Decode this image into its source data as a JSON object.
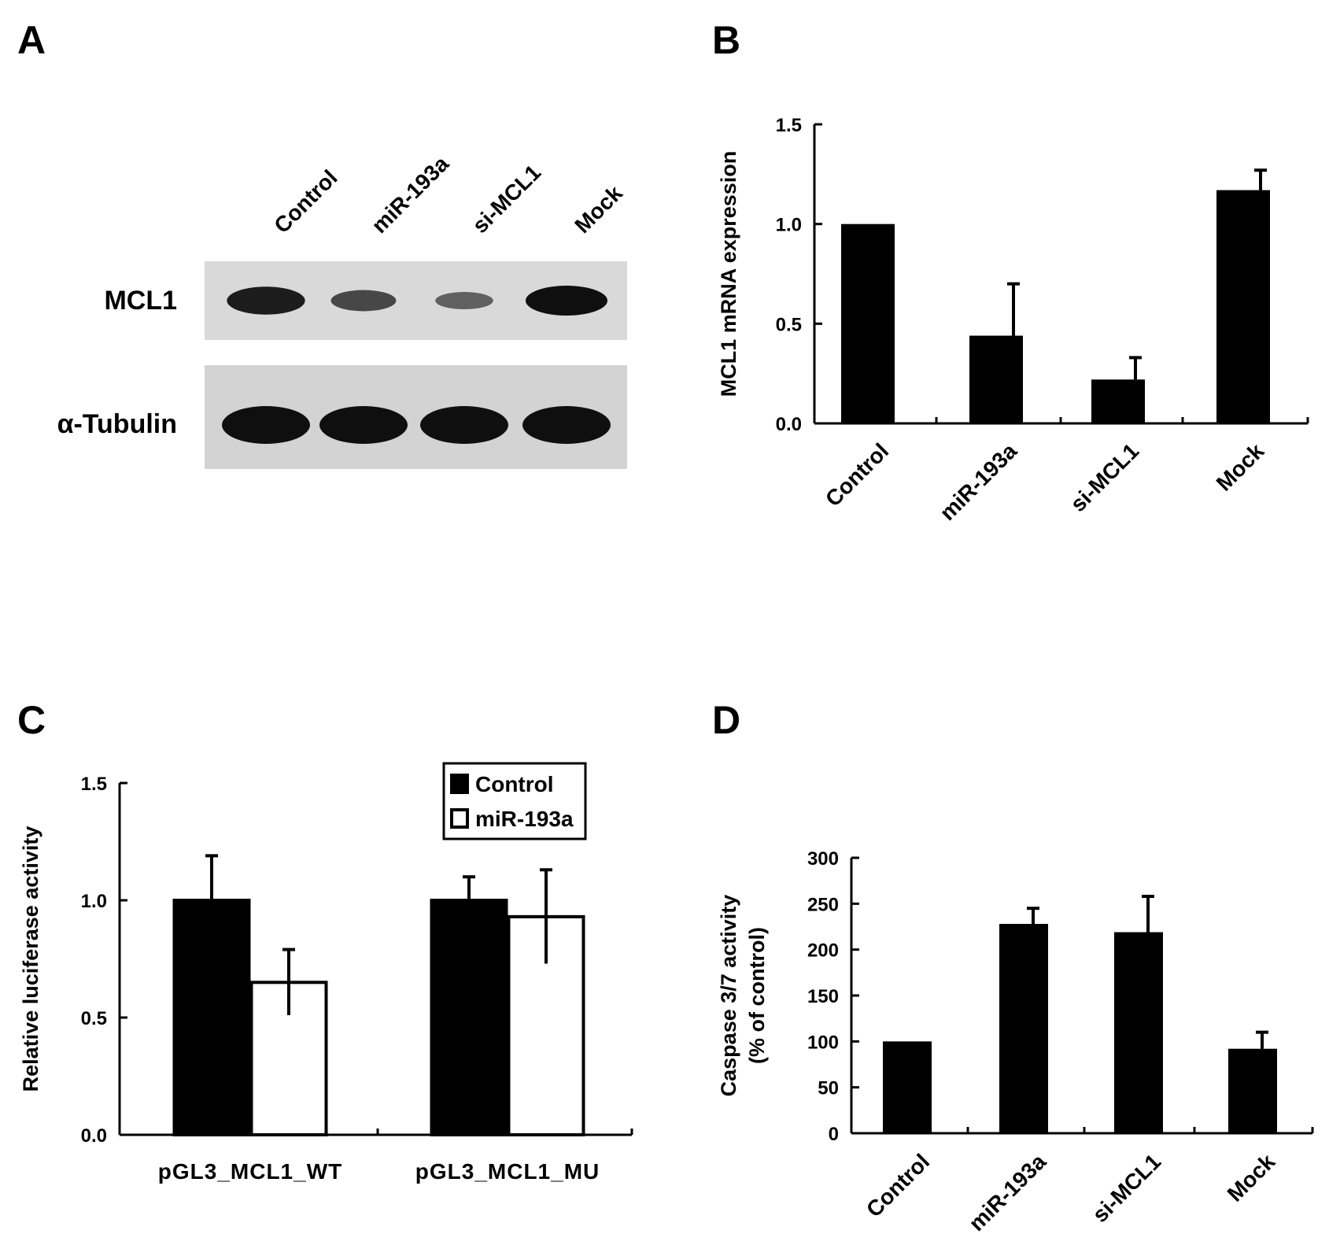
{
  "panels": {
    "A": {
      "label": "A",
      "lanes": [
        "Control",
        "miR-193a",
        "si-MCL1",
        "Mock"
      ],
      "blots": [
        {
          "name": "MCL1",
          "band_intensity": [
            0.9,
            0.55,
            0.35,
            1.0
          ]
        },
        {
          "name": "α-Tubulin",
          "band_intensity": [
            1.0,
            1.0,
            1.0,
            1.0
          ]
        }
      ]
    },
    "B": {
      "label": "B"
    },
    "C": {
      "label": "C"
    },
    "D": {
      "label": "D"
    }
  },
  "chart_data": [
    {
      "panel": "B",
      "type": "bar",
      "categories": [
        "Control",
        "miR-193a",
        "si-MCL1",
        "Mock"
      ],
      "values": [
        1.0,
        0.44,
        0.22,
        1.17
      ],
      "errors": [
        0,
        0.26,
        0.11,
        0.1
      ],
      "ylabel": "MCL1 mRNA expression",
      "ylim": [
        0,
        1.5
      ],
      "yticks": [
        "0.0",
        "0.5",
        "1.0",
        "1.5"
      ],
      "grid": false,
      "color": "#000000"
    },
    {
      "panel": "C",
      "type": "bar",
      "categories": [
        "pGL3_MCL1_WT",
        "pGL3_MCL1_MU"
      ],
      "series": [
        {
          "name": "Control",
          "values": [
            1.0,
            1.0
          ],
          "errors": [
            0.19,
            0.1
          ],
          "color": "#000000"
        },
        {
          "name": "miR-193a",
          "values": [
            0.65,
            0.93
          ],
          "errors": [
            0.14,
            0.2
          ],
          "color": "#ffffff"
        }
      ],
      "ylabel": "Relative luciferase activity",
      "ylim": [
        0,
        1.5
      ],
      "yticks": [
        "0.0",
        "0.5",
        "1.0",
        "1.5"
      ],
      "legend": "top-right",
      "grid": false
    },
    {
      "panel": "D",
      "type": "bar",
      "categories": [
        "Control",
        "miR-193a",
        "si-MCL1",
        "Mock"
      ],
      "values": [
        100,
        228,
        219,
        92
      ],
      "errors": [
        0,
        17,
        39,
        18
      ],
      "ylabel": [
        "Caspase 3/7 activity",
        "(% of control)"
      ],
      "ylim": [
        0,
        300
      ],
      "yticks": [
        "0",
        "50",
        "100",
        "150",
        "200",
        "250",
        "300"
      ],
      "grid": false,
      "color": "#000000"
    }
  ]
}
